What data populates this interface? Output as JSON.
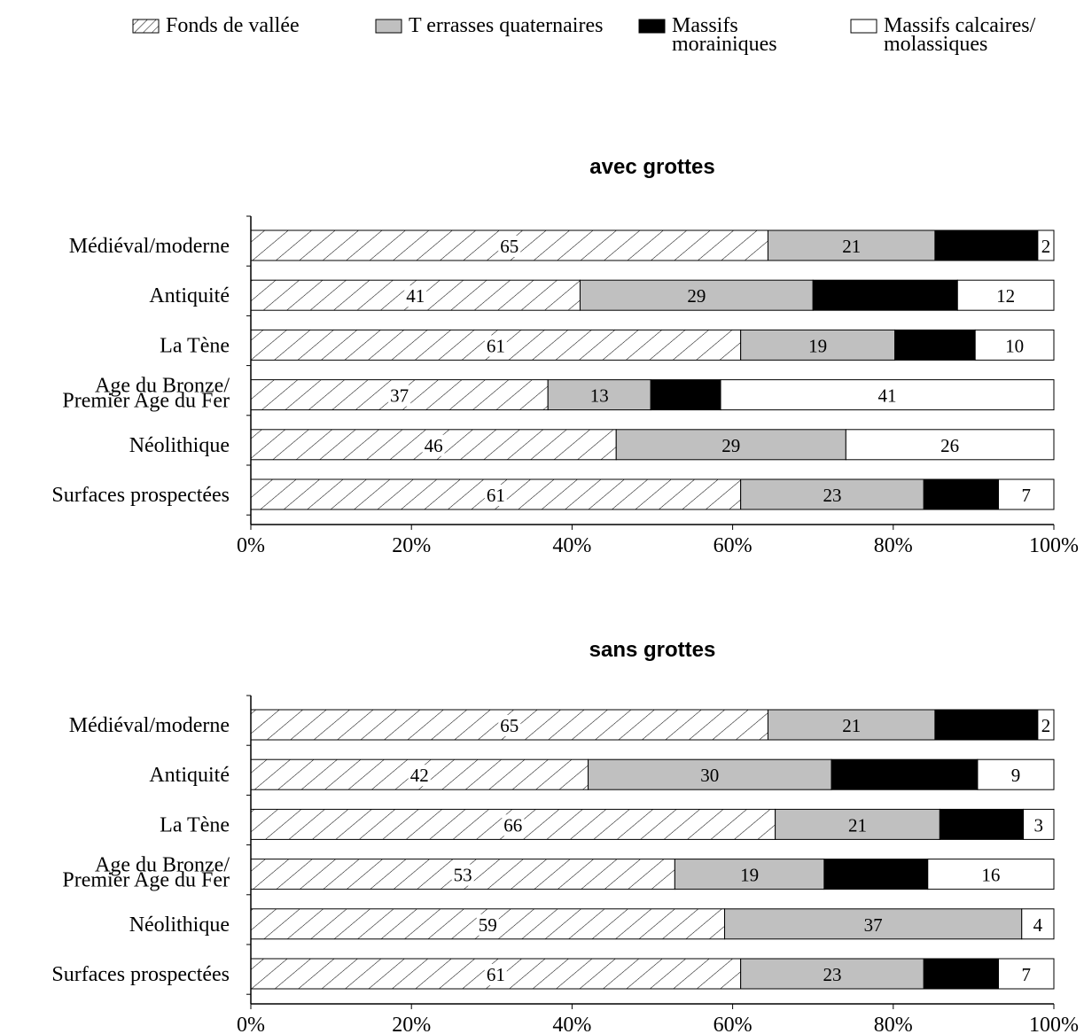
{
  "legend": {
    "items": [
      {
        "label": "Fonds de vallée",
        "pattern": "hatch",
        "color": "#ffffff"
      },
      {
        "label": "T errasses quaternaires",
        "pattern": "solid",
        "color": "#c0c0c0"
      },
      {
        "label": "Massifs\nmorainiques",
        "pattern": "solid",
        "color": "#000000"
      },
      {
        "label": "Massifs calcaires/\nmolassiques",
        "pattern": "solid",
        "color": "#ffffff"
      }
    ]
  },
  "chart_data": [
    {
      "type": "bar",
      "stacked": true,
      "orientation": "horizontal",
      "title": "avec grottes",
      "categories": [
        "Médiéval/moderne",
        "Antiquité",
        "La Tène",
        "Age du Bronze/\nPremier Age du Fer",
        "Néolithique",
        "Surfaces prospectées"
      ],
      "series": [
        {
          "name": "Fonds de vallée",
          "values": [
            65,
            41,
            61,
            37,
            46,
            61
          ]
        },
        {
          "name": "T errasses quaternaires",
          "values": [
            21,
            29,
            19,
            13,
            29,
            23
          ]
        },
        {
          "name": "Massifs morainiques",
          "values": [
            13,
            18,
            10,
            9,
            0,
            9
          ]
        },
        {
          "name": "Massifs calcaires/ molassiques",
          "values": [
            2,
            12,
            10,
            41,
            26,
            7
          ]
        }
      ],
      "segments_pct": [
        [
          64.4,
          20.8,
          12.8,
          2.0
        ],
        [
          41.0,
          29.0,
          18.0,
          12.0
        ],
        [
          61.0,
          19.2,
          10.0,
          9.8
        ],
        [
          37.0,
          12.8,
          8.7,
          41.5
        ],
        [
          45.5,
          28.6,
          0,
          25.9
        ],
        [
          61.0,
          22.8,
          9.3,
          6.9
        ]
      ],
      "x_ticks": [
        "0%",
        "20%",
        "40%",
        "60%",
        "80%",
        "100%"
      ],
      "xlim": [
        0,
        100
      ],
      "grid": false,
      "legend_position": "top"
    },
    {
      "type": "bar",
      "stacked": true,
      "orientation": "horizontal",
      "title": "sans grottes",
      "categories": [
        "Médiéval/moderne",
        "Antiquité",
        "La Tène",
        "Age du Bronze/\nPremier Age du Fer",
        "Néolithique",
        "Surfaces prospectées"
      ],
      "series": [
        {
          "name": "Fonds de vallée",
          "values": [
            65,
            42,
            66,
            53,
            59,
            61
          ]
        },
        {
          "name": "T errasses quaternaires",
          "values": [
            21,
            30,
            21,
            19,
            37,
            23
          ]
        },
        {
          "name": "Massifs morainiques",
          "values": [
            13,
            18,
            10,
            13,
            0,
            9
          ]
        },
        {
          "name": "Massifs calcaires/ molassiques",
          "values": [
            2,
            9,
            3,
            16,
            4,
            7
          ]
        }
      ],
      "segments_pct": [
        [
          64.4,
          20.8,
          12.8,
          2.0
        ],
        [
          42.0,
          30.3,
          18.2,
          9.5
        ],
        [
          65.3,
          20.5,
          10.4,
          3.8
        ],
        [
          52.8,
          18.6,
          12.9,
          15.7
        ],
        [
          59.0,
          37.0,
          0,
          4.0
        ],
        [
          61.0,
          22.8,
          9.3,
          6.9
        ]
      ],
      "x_ticks": [
        "0%",
        "20%",
        "40%",
        "60%",
        "80%",
        "100%"
      ],
      "xlim": [
        0,
        100
      ],
      "grid": false,
      "legend_position": "top"
    }
  ]
}
